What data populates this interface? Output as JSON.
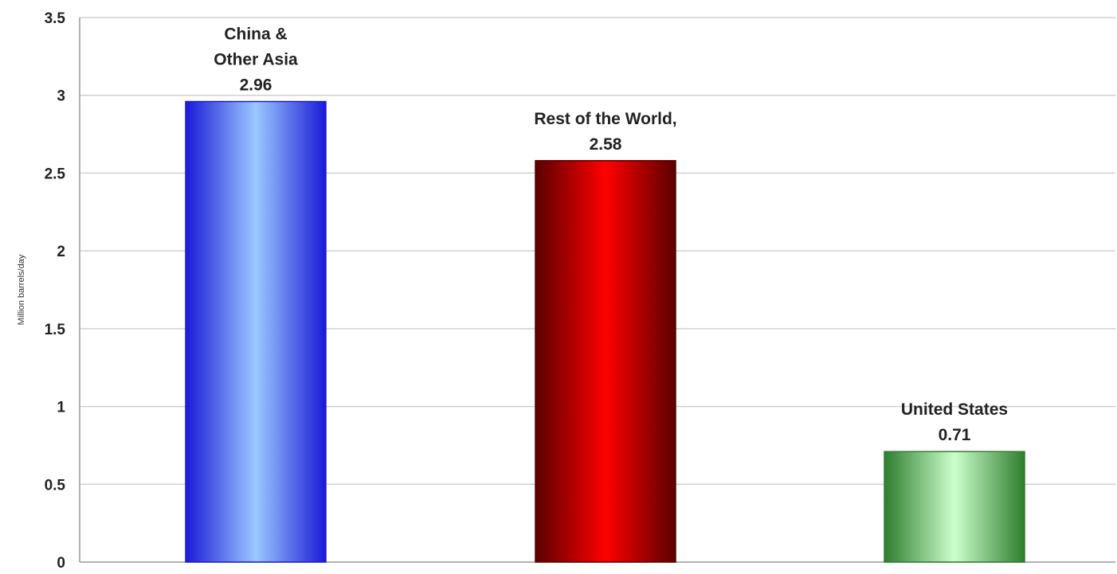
{
  "chart_data": {
    "type": "bar",
    "title": "",
    "xlabel": "",
    "ylabel": "Million barrels/day",
    "ylim": [
      0,
      3.5
    ],
    "yticks": [
      "0",
      "0.5",
      "1",
      "1.5",
      "2",
      "2.5",
      "3",
      "3.5"
    ],
    "grid": true,
    "legend": "none",
    "categories": [
      "China & Other Asia",
      "Rest of the World,",
      "United States"
    ],
    "values": [
      2.96,
      2.58,
      0.71
    ],
    "data_labels": [
      {
        "lines": [
          "China &",
          "Other Asia",
          "2.96"
        ]
      },
      {
        "lines": [
          "Rest of the World,",
          "2.58"
        ]
      },
      {
        "lines": [
          "United States",
          "0.71"
        ]
      }
    ],
    "colors": [
      {
        "edge": "#1a1ad6",
        "mid": "#9cc8ff"
      },
      {
        "edge": "#5a0000",
        "mid": "#ff0000"
      },
      {
        "edge": "#2e7d2e",
        "mid": "#ccffcc"
      }
    ],
    "gridline_color": "#d0d0d0",
    "axis_color": "#999999"
  }
}
